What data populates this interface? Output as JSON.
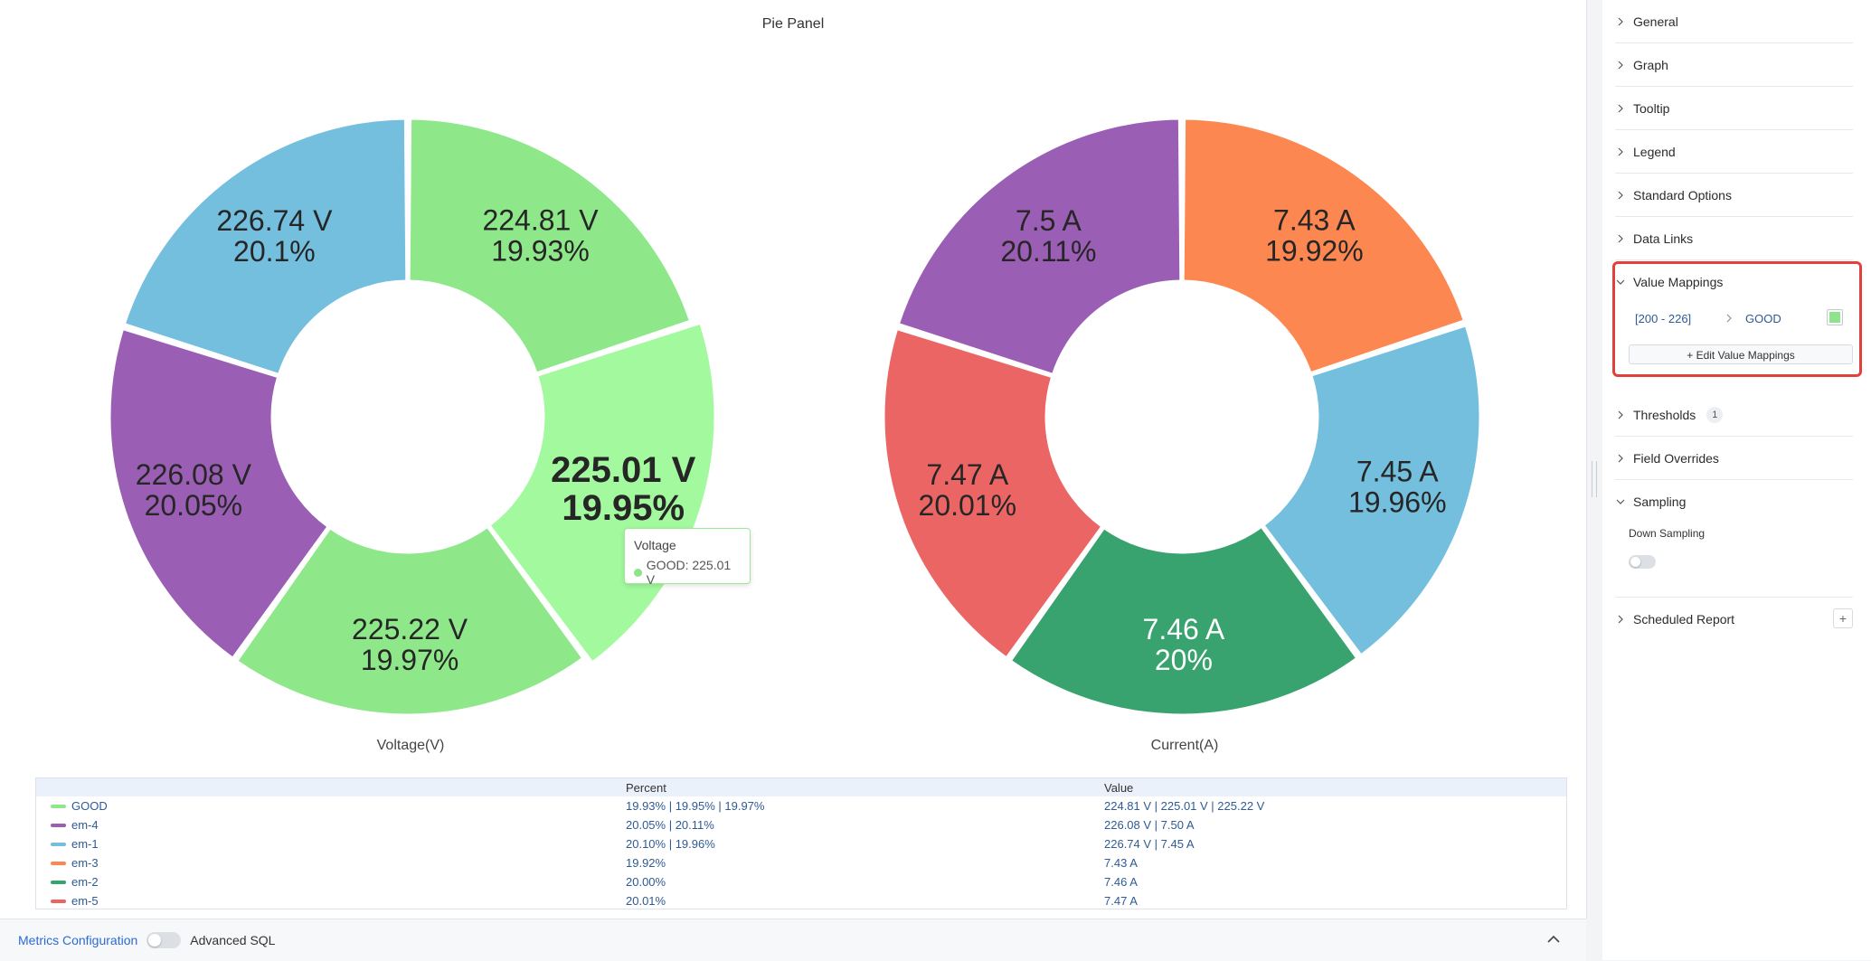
{
  "panel": {
    "title": "Pie Panel"
  },
  "chart_data": [
    {
      "type": "pie",
      "name": "Voltage",
      "caption": "Voltage(V)",
      "categories": [
        "GOOD",
        "GOOD",
        "GOOD",
        "em-4",
        "em-1"
      ],
      "values": [
        224.81,
        225.01,
        225.22,
        226.08,
        226.74
      ],
      "value_labels": [
        "224.81 V",
        "225.01 V",
        "225.22 V",
        "226.08 V",
        "226.74 V"
      ],
      "percent_labels": [
        "19.93%",
        "19.95%",
        "19.97%",
        "20.05%",
        "20.1%"
      ],
      "colors": [
        "#8EE88A",
        "#A3F99E",
        "#8EE88A",
        "#9B5EB5",
        "#73BFDD"
      ],
      "highlighted_index": 1
    },
    {
      "type": "pie",
      "name": "Current",
      "caption": "Current(A)",
      "categories": [
        "em-3",
        "em-1",
        "em-2",
        "em-5",
        "em-4"
      ],
      "values": [
        7.43,
        7.45,
        7.46,
        7.47,
        7.5
      ],
      "value_labels": [
        "7.43 A",
        "7.45 A",
        "7.46 A",
        "7.47 A",
        "7.5 A"
      ],
      "percent_labels": [
        "19.92%",
        "19.96%",
        "20%",
        "20.01%",
        "20.11%"
      ],
      "colors": [
        "#FC8751",
        "#73BFDD",
        "#38A36E",
        "#EC6565",
        "#9B5EB5"
      ],
      "light_label_index": 2
    }
  ],
  "tooltip": {
    "title": "Voltage",
    "row": "GOOD: 225.01 V"
  },
  "legend": {
    "headers": {
      "name": "",
      "percent": "Percent",
      "value": "Value"
    },
    "rows": [
      {
        "name": "GOOD",
        "color": "#8EE88A",
        "percent": "19.93% | 19.95% | 19.97%",
        "value": "224.81 V | 225.01 V | 225.22 V"
      },
      {
        "name": "em-4",
        "color": "#9B5EB5",
        "percent": "20.05% | 20.11%",
        "value": "226.08 V | 7.50 A"
      },
      {
        "name": "em-1",
        "color": "#73BFDD",
        "percent": "20.10% | 19.96%",
        "value": "226.74 V | 7.45 A"
      },
      {
        "name": "em-3",
        "color": "#FC8751",
        "percent": "19.92%",
        "value": "7.43 A"
      },
      {
        "name": "em-2",
        "color": "#38A36E",
        "percent": "20.00%",
        "value": "7.46 A"
      },
      {
        "name": "em-5",
        "color": "#EC6565",
        "percent": "20.01%",
        "value": "7.47 A"
      }
    ]
  },
  "bottom_bar": {
    "metrics_label": "Metrics Configuration",
    "advanced_sql_label": "Advanced SQL"
  },
  "side_panel": {
    "sections": [
      {
        "label": "General",
        "expanded": false
      },
      {
        "label": "Graph",
        "expanded": false
      },
      {
        "label": "Tooltip",
        "expanded": false
      },
      {
        "label": "Legend",
        "expanded": false
      },
      {
        "label": "Standard Options",
        "expanded": false
      },
      {
        "label": "Data Links",
        "expanded": false
      },
      {
        "label": "Value Mappings",
        "expanded": true
      },
      {
        "label": "Thresholds",
        "expanded": false,
        "badge": "1"
      },
      {
        "label": "Field Overrides",
        "expanded": false
      },
      {
        "label": "Sampling",
        "expanded": true
      },
      {
        "label": "Scheduled Report",
        "expanded": false,
        "add_button": "+"
      }
    ],
    "value_mapping": {
      "range": "[200 - 226]",
      "text": "GOOD",
      "color": "#8EE88A",
      "edit_button": "+ Edit Value Mappings"
    },
    "sampling": {
      "down_sampling_label": "Down Sampling"
    }
  }
}
